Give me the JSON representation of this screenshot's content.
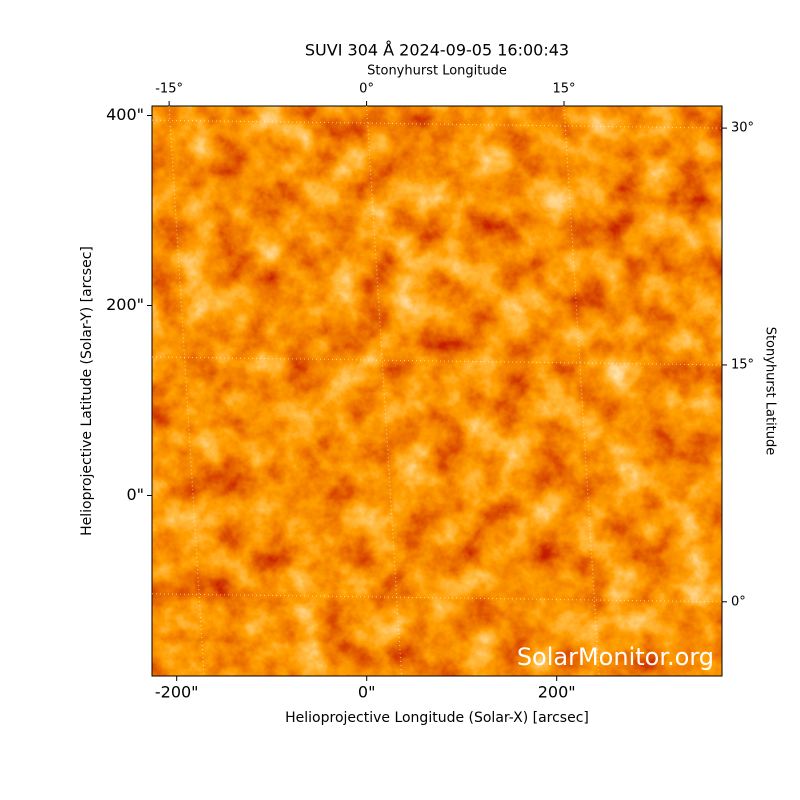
{
  "chart_data": {
    "type": "image",
    "title": "SUVI 304 Å 2024-09-05 16:00:43",
    "xlabel": "Helioprojective Longitude (Solar-X) [arcsec]",
    "ylabel": "Helioprojective Latitude (Solar-Y) [arcsec]",
    "x2label": "Stonyhurst Longitude",
    "y2label": "Stonyhurst Latitude",
    "watermark": "SolarMonitor.org",
    "xlim": [
      -226,
      374
    ],
    "ylim": [
      -190,
      410
    ],
    "xticks": [
      {
        "value": -200,
        "label": "-200\""
      },
      {
        "value": 0,
        "label": "0\""
      },
      {
        "value": 200,
        "label": "200\""
      }
    ],
    "yticks": [
      {
        "value": 0,
        "label": "0\""
      },
      {
        "value": 200,
        "label": "200\""
      },
      {
        "value": 400,
        "label": "400\""
      }
    ],
    "x2lim": [
      -16.3,
      27
    ],
    "x2ticks": [
      {
        "value": -15,
        "label": "-15°"
      },
      {
        "value": 0,
        "label": "0°"
      },
      {
        "value": 15,
        "label": "15°"
      }
    ],
    "y2lim": [
      -4.7,
      31.4
    ],
    "y2ticks": [
      {
        "value": 0,
        "label": "0°"
      },
      {
        "value": 15,
        "label": "15°"
      },
      {
        "value": 30,
        "label": "30°"
      }
    ],
    "grid": true
  }
}
